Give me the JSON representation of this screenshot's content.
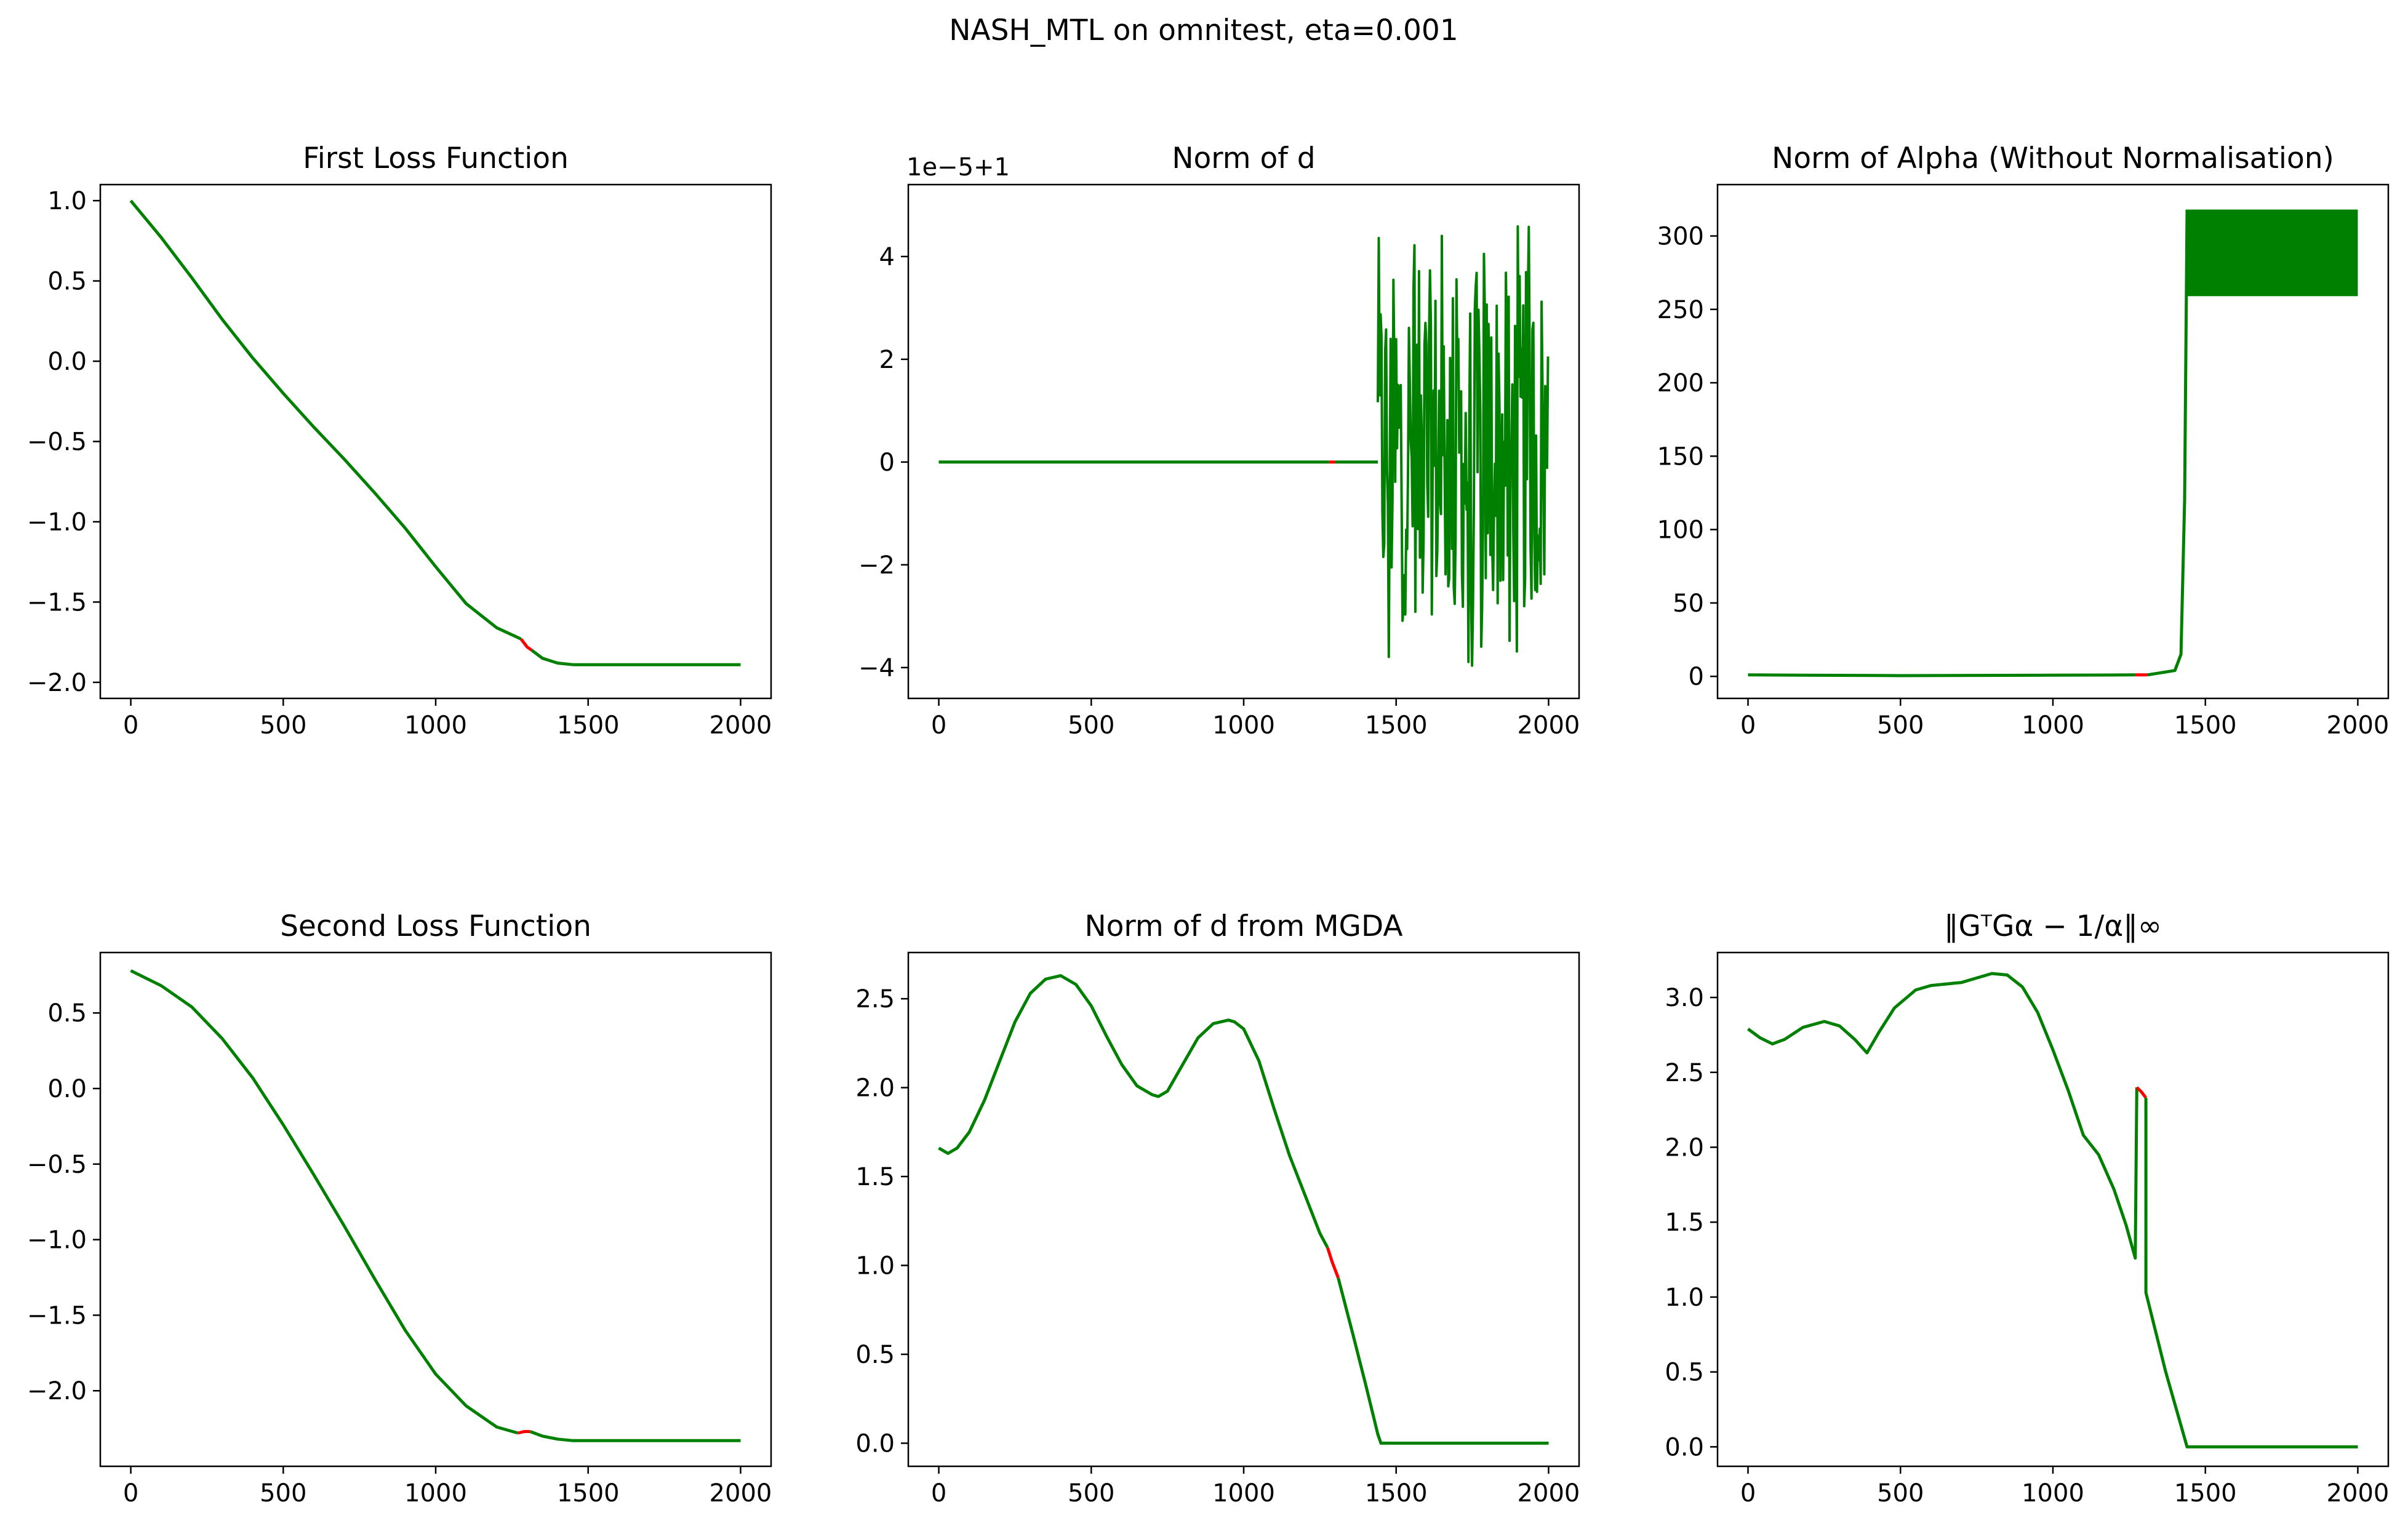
{
  "figure": {
    "title": "NASH_MTL on omnitest, eta=0.001"
  },
  "colors": {
    "line": "#008000",
    "highlight": "#ff0000",
    "axes": "#000000",
    "background": "#ffffff"
  },
  "chart_data": [
    {
      "id": "first-loss",
      "type": "line",
      "title": "First Loss Function",
      "xlabel": "",
      "ylabel": "",
      "xlim": [
        -100,
        2100
      ],
      "ylim": [
        -2.1,
        1.1
      ],
      "xticks": [
        0,
        500,
        1000,
        1500,
        2000
      ],
      "xticklabels": [
        "0",
        "500",
        "1000",
        "1500",
        "2000"
      ],
      "yticks": [
        1.0,
        0.5,
        0.0,
        -0.5,
        -1.0,
        -1.5,
        -2.0
      ],
      "yticklabels": [
        "1.0",
        "0.5",
        "0.0",
        "−0.5",
        "−1.0",
        "−1.5",
        "−2.0"
      ],
      "series": [
        {
          "color": "#008000",
          "x": [
            0,
            100,
            200,
            300,
            400,
            500,
            600,
            700,
            800,
            900,
            1000,
            1100,
            1200,
            1280
          ],
          "y": [
            1.0,
            0.77,
            0.52,
            0.26,
            0.02,
            -0.2,
            -0.41,
            -0.61,
            -0.82,
            -1.04,
            -1.28,
            -1.51,
            -1.66,
            -1.73
          ]
        },
        {
          "color": "#ff0000",
          "x": [
            1280,
            1300,
            1315
          ],
          "y": [
            -1.73,
            -1.78,
            -1.8
          ]
        },
        {
          "color": "#008000",
          "x": [
            1315,
            1350,
            1400,
            1450,
            1500,
            2000
          ],
          "y": [
            -1.8,
            -1.85,
            -1.88,
            -1.89,
            -1.89,
            -1.89
          ]
        }
      ],
      "grid": false,
      "legend": "none"
    },
    {
      "id": "norm-d",
      "type": "line",
      "title": "Norm of d",
      "offset_text": "1e−5+1",
      "xlabel": "",
      "ylabel": "",
      "xlim": [
        -100,
        2100
      ],
      "ylim": [
        -4.6,
        5.4
      ],
      "xticks": [
        0,
        500,
        1000,
        1500,
        2000
      ],
      "xticklabels": [
        "0",
        "500",
        "1000",
        "1500",
        "2000"
      ],
      "yticks": [
        4,
        2,
        0,
        -2,
        -4
      ],
      "yticklabels": [
        "4",
        "2",
        "0",
        "−2",
        "−4"
      ],
      "series": [
        {
          "color": "#008000",
          "x": [
            0,
            400,
            800,
            1280
          ],
          "y": [
            0,
            0,
            0,
            0
          ]
        },
        {
          "color": "#ff0000",
          "x": [
            1280,
            1300
          ],
          "y": [
            0,
            0
          ]
        },
        {
          "color": "#008000",
          "x": [
            1300,
            1440
          ],
          "y": [
            0,
            0
          ],
          "noisy_after": 1440,
          "noise_range": [
            -4.0,
            5.0
          ]
        }
      ],
      "grid": false,
      "legend": "none"
    },
    {
      "id": "norm-alpha",
      "type": "line",
      "title": "Norm of Alpha (Without Normalisation)",
      "xlabel": "",
      "ylabel": "",
      "xlim": [
        -100,
        2100
      ],
      "ylim": [
        -15,
        335
      ],
      "xticks": [
        0,
        500,
        1000,
        1500,
        2000
      ],
      "xticklabels": [
        "0",
        "500",
        "1000",
        "1500",
        "2000"
      ],
      "yticks": [
        0,
        50,
        100,
        150,
        200,
        250,
        300
      ],
      "yticklabels": [
        "0",
        "50",
        "100",
        "150",
        "200",
        "250",
        "300"
      ],
      "series": [
        {
          "color": "#008000",
          "x": [
            0,
            500,
            1000,
            1270
          ],
          "y": [
            1,
            0.5,
            0.8,
            1
          ]
        },
        {
          "color": "#ff0000",
          "x": [
            1270,
            1310
          ],
          "y": [
            1,
            1
          ]
        },
        {
          "color": "#008000",
          "x": [
            1310,
            1400,
            1420,
            1432,
            1440
          ],
          "y": [
            1,
            4,
            15,
            120,
            318
          ],
          "band_after": 1440,
          "band_range": [
            259,
            318
          ]
        }
      ],
      "grid": false,
      "legend": "none"
    },
    {
      "id": "second-loss",
      "type": "line",
      "title": "Second Loss Function",
      "xlabel": "",
      "ylabel": "",
      "xlim": [
        -100,
        2100
      ],
      "ylim": [
        -2.5,
        0.9
      ],
      "xticks": [
        0,
        500,
        1000,
        1500,
        2000
      ],
      "xticklabels": [
        "0",
        "500",
        "1000",
        "1500",
        "2000"
      ],
      "yticks": [
        0.5,
        0.0,
        -0.5,
        -1.0,
        -1.5,
        -2.0
      ],
      "yticklabels": [
        "0.5",
        "0.0",
        "−0.5",
        "−1.0",
        "−1.5",
        "−2.0"
      ],
      "series": [
        {
          "color": "#008000",
          "x": [
            0,
            100,
            200,
            300,
            400,
            500,
            600,
            700,
            800,
            900,
            1000,
            1100,
            1200,
            1270
          ],
          "y": [
            0.78,
            0.68,
            0.54,
            0.33,
            0.07,
            -0.24,
            -0.57,
            -0.91,
            -1.26,
            -1.6,
            -1.89,
            -2.1,
            -2.24,
            -2.28
          ]
        },
        {
          "color": "#ff0000",
          "x": [
            1270,
            1290,
            1310
          ],
          "y": [
            -2.28,
            -2.27,
            -2.27
          ]
        },
        {
          "color": "#008000",
          "x": [
            1310,
            1350,
            1400,
            1450,
            2000
          ],
          "y": [
            -2.27,
            -2.3,
            -2.32,
            -2.33,
            -2.33
          ]
        }
      ],
      "grid": false,
      "legend": "none"
    },
    {
      "id": "norm-d-mgda",
      "type": "line",
      "title": "Norm of d from MGDA",
      "xlabel": "",
      "ylabel": "",
      "xlim": [
        -100,
        2100
      ],
      "ylim": [
        -0.13,
        2.76
      ],
      "xticks": [
        0,
        500,
        1000,
        1500,
        2000
      ],
      "xticklabels": [
        "0",
        "500",
        "1000",
        "1500",
        "2000"
      ],
      "yticks": [
        2.5,
        2.0,
        1.5,
        1.0,
        0.5,
        0.0
      ],
      "yticklabels": [
        "2.5",
        "2.0",
        "1.5",
        "1.0",
        "0.5",
        "0.0"
      ],
      "series": [
        {
          "color": "#008000",
          "x": [
            0,
            30,
            60,
            100,
            150,
            200,
            250,
            300,
            350,
            400,
            450,
            500,
            550,
            600,
            650,
            700,
            720,
            750,
            800,
            850,
            900,
            950,
            970,
            1000,
            1050,
            1100,
            1150,
            1200,
            1250,
            1275
          ],
          "y": [
            1.66,
            1.63,
            1.66,
            1.75,
            1.93,
            2.15,
            2.37,
            2.53,
            2.61,
            2.63,
            2.58,
            2.46,
            2.29,
            2.13,
            2.01,
            1.96,
            1.95,
            1.98,
            2.13,
            2.28,
            2.36,
            2.38,
            2.37,
            2.33,
            2.15,
            1.88,
            1.62,
            1.4,
            1.18,
            1.1
          ]
        },
        {
          "color": "#ff0000",
          "x": [
            1275,
            1290,
            1310
          ],
          "y": [
            1.1,
            1.02,
            0.93
          ]
        },
        {
          "color": "#008000",
          "x": [
            1310,
            1360,
            1400,
            1440,
            1450,
            2000
          ],
          "y": [
            0.93,
            0.6,
            0.33,
            0.05,
            0.0,
            0.0
          ]
        }
      ],
      "grid": false,
      "legend": "none"
    },
    {
      "id": "kkt-residual",
      "type": "line",
      "title": "‖GᵀGα − 1/α‖∞",
      "xlabel": "",
      "ylabel": "",
      "xlim": [
        -100,
        2100
      ],
      "ylim": [
        -0.13,
        3.3
      ],
      "xticks": [
        0,
        500,
        1000,
        1500,
        2000
      ],
      "xticklabels": [
        "0",
        "500",
        "1000",
        "1500",
        "2000"
      ],
      "yticks": [
        3.0,
        2.5,
        2.0,
        1.5,
        1.0,
        0.5,
        0.0
      ],
      "yticklabels": [
        "3.0",
        "2.5",
        "2.0",
        "1.5",
        "1.0",
        "0.5",
        "0.0"
      ],
      "series": [
        {
          "color": "#008000",
          "x": [
            0,
            40,
            80,
            120,
            180,
            250,
            300,
            350,
            390,
            430,
            480,
            550,
            600,
            650,
            700,
            750,
            800,
            850,
            900,
            950,
            1000,
            1050,
            1100,
            1150,
            1200,
            1240,
            1270,
            1275
          ],
          "y": [
            2.79,
            2.73,
            2.69,
            2.72,
            2.8,
            2.84,
            2.81,
            2.72,
            2.63,
            2.77,
            2.93,
            3.05,
            3.08,
            3.09,
            3.1,
            3.13,
            3.16,
            3.15,
            3.07,
            2.9,
            2.65,
            2.38,
            2.08,
            1.95,
            1.72,
            1.48,
            1.26,
            2.4
          ]
        },
        {
          "color": "#ff0000",
          "x": [
            1275,
            1290,
            1305
          ],
          "y": [
            2.4,
            2.37,
            2.33
          ]
        },
        {
          "color": "#008000",
          "x": [
            1305,
            1305,
            1370,
            1440,
            2000
          ],
          "y": [
            2.33,
            1.03,
            0.5,
            0.0,
            0.0
          ]
        }
      ],
      "grid": false,
      "legend": "none"
    }
  ]
}
